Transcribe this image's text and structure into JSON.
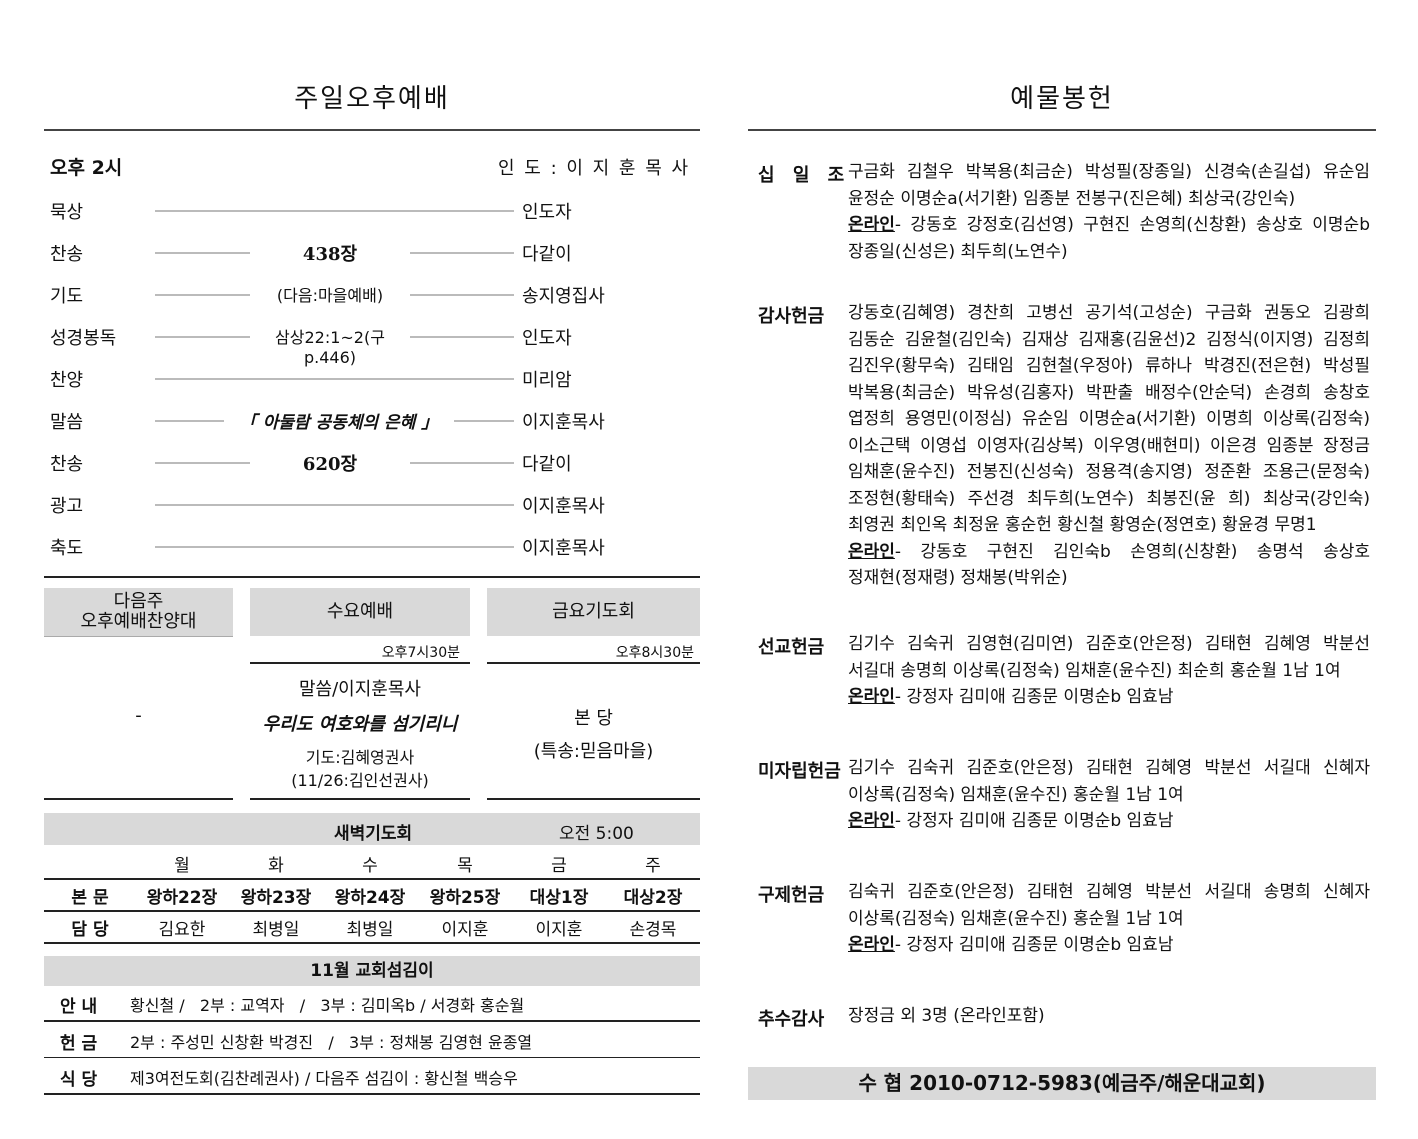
{
  "left": {
    "title": "주일오후예배",
    "time": "오후 2시",
    "leader": "인 도 : 이 지 훈 목 사",
    "order": [
      {
        "item": "묵상",
        "content": "",
        "person": "인도자"
      },
      {
        "item": "찬송",
        "content": "438장",
        "person": "다같이"
      },
      {
        "item": "기도",
        "content": "(다음:마을예배)",
        "person": "송지영집사"
      },
      {
        "item": "성경봉독",
        "content": "삼상22:1~2(구p.446)",
        "person": "인도자"
      },
      {
        "item": "찬양",
        "content": "",
        "person": "미리암"
      },
      {
        "item": "말씀",
        "content": "「 아둘람 공동체의 은혜 」",
        "person": "이지훈목사"
      },
      {
        "item": "찬송",
        "content": "620장",
        "person": "다같이"
      },
      {
        "item": "광고",
        "content": "",
        "person": "이지훈목사"
      },
      {
        "item": "축도",
        "content": "",
        "person": "이지훈목사"
      }
    ],
    "next_choir": {
      "header": "다음주\n오후예배찬양대",
      "content": "-"
    },
    "wednesday": {
      "header": "수요예배",
      "time": "오후7시30분",
      "speaker": "말씀/이지훈목사",
      "sermon": "우리도 여호와를 섬기리니",
      "prayer": "기도:김혜영권사",
      "next_prayer": "(11/26:김인선권사)"
    },
    "friday": {
      "header": "금요기도회",
      "time": "오후8시30분",
      "place": "본 당",
      "special": "(특송:믿음마을)"
    },
    "dawn": {
      "title": "새벽기도회",
      "time": "오전 5:00",
      "days": [
        "월",
        "화",
        "수",
        "목",
        "금",
        "주"
      ],
      "rows": [
        {
          "label": "본 문",
          "values": [
            "왕하22장",
            "왕하23장",
            "왕하24장",
            "왕하25장",
            "대상1장",
            "대상2장"
          ]
        },
        {
          "label": "담 당",
          "values": [
            "김요한",
            "최병일",
            "최병일",
            "이지훈",
            "이지훈",
            "손경목"
          ]
        }
      ]
    },
    "servants": {
      "title": "11월  교회섬김이",
      "rows": [
        {
          "label": "안 내",
          "value": "황신철 /   2부 : 교역자   /   3부 : 김미옥b / 서경화 홍순월"
        },
        {
          "label": "헌 금",
          "value": "2부 : 주성민 신창환 박경진   /   3부 : 정채봉 김영현 윤종열"
        },
        {
          "label": "식 당",
          "value": "제3여전도회(김찬례권사) / 다음주 섬김이 : 황신철 백승우"
        }
      ]
    }
  },
  "right": {
    "title": "예물봉헌",
    "online_label": "온라인",
    "sections": [
      {
        "label": "십 일 조",
        "paragraphs": [
          {
            "online": false,
            "lines": [
              "구금화 김철우 박복용(최금순) 박성필(장종일) 신경숙(손길섭) 유순임",
              "윤정순 이명순a(서기환) 임종분 전봉구(진은혜) 최상국(강인숙)"
            ]
          },
          {
            "online": true,
            "lines": [
              "- 강동호 강정호(김선영) 구현진 손영희(신창환) 송상호 이명순b",
              "장종일(신성은) 최두희(노연수)"
            ]
          }
        ]
      },
      {
        "label": "감사헌금",
        "paragraphs": [
          {
            "online": false,
            "lines": [
              "강동호(김혜영) 경찬희 고병선 공기석(고성순) 구금화 권동오 김광희",
              "김동순 김윤철(김인숙) 김재상 김재홍(김윤선)2 김정식(이지영) 김정희",
              "김진우(황무숙) 김태임 김현철(우정아) 류하나 박경진(전은현) 박성필",
              "박복용(최금순) 박유성(김홍자) 박판출 배정수(안순덕) 손경희 송창호",
              "엽정희 용영민(이정심) 유순임 이명순a(서기환) 이명희 이상록(김정숙)",
              "이소근택 이영섭 이영자(김상복) 이우영(배현미) 이은경 임종분 장정금",
              "임채훈(윤수진) 전봉진(신성숙) 정용격(송지영) 정준환 조용근(문정숙)",
              "조정현(황태숙) 주선경 최두희(노연수) 최봉진(윤 희) 최상국(강인숙)",
              "최영권 최인옥 최정윤 홍순헌 황신철 황영순(정연호) 황윤경 무명1"
            ]
          },
          {
            "online": true,
            "lines": [
              "- 강동호 구현진 김인숙b 손영희(신창환) 송명석 송상호",
              "정재현(정재령) 정채봉(박위순)"
            ]
          }
        ]
      },
      {
        "label": "선교헌금",
        "paragraphs": [
          {
            "online": false,
            "lines": [
              "김기수 김숙귀 김영현(김미연) 김준호(안은정) 김태현 김혜영 박분선",
              "서길대 송명희 이상록(김정숙) 임채훈(윤수진) 최순희 홍순월 1남 1여"
            ]
          },
          {
            "online": true,
            "lines": [
              "- 강정자 김미애 김종문 이명순b 임효남"
            ]
          }
        ]
      },
      {
        "label": "미자립헌금",
        "paragraphs": [
          {
            "online": false,
            "lines": [
              "김기수 김숙귀 김준호(안은정) 김태현 김혜영 박분선 서길대 신혜자",
              "이상록(김정숙) 임채훈(윤수진) 홍순월 1남 1여"
            ]
          },
          {
            "online": true,
            "lines": [
              "- 강정자 김미애 김종문 이명순b 임효남"
            ]
          }
        ]
      },
      {
        "label": "구제헌금",
        "paragraphs": [
          {
            "online": false,
            "lines": [
              "김숙귀 김준호(안은정) 김태현 김혜영 박분선 서길대 송명희 신혜자",
              "이상록(김정숙) 임채훈(윤수진) 홍순월 1남 1여"
            ]
          },
          {
            "online": true,
            "lines": [
              "- 강정자 김미애 김종문 이명순b 임효남"
            ]
          }
        ]
      },
      {
        "label": "추수감사",
        "paragraphs": [
          {
            "online": false,
            "lines": [
              "장정금 외 3명 (온라인포함)"
            ]
          }
        ]
      }
    ],
    "bank": "수  협  2010-0712-5983(예금주/해운대교회)"
  }
}
